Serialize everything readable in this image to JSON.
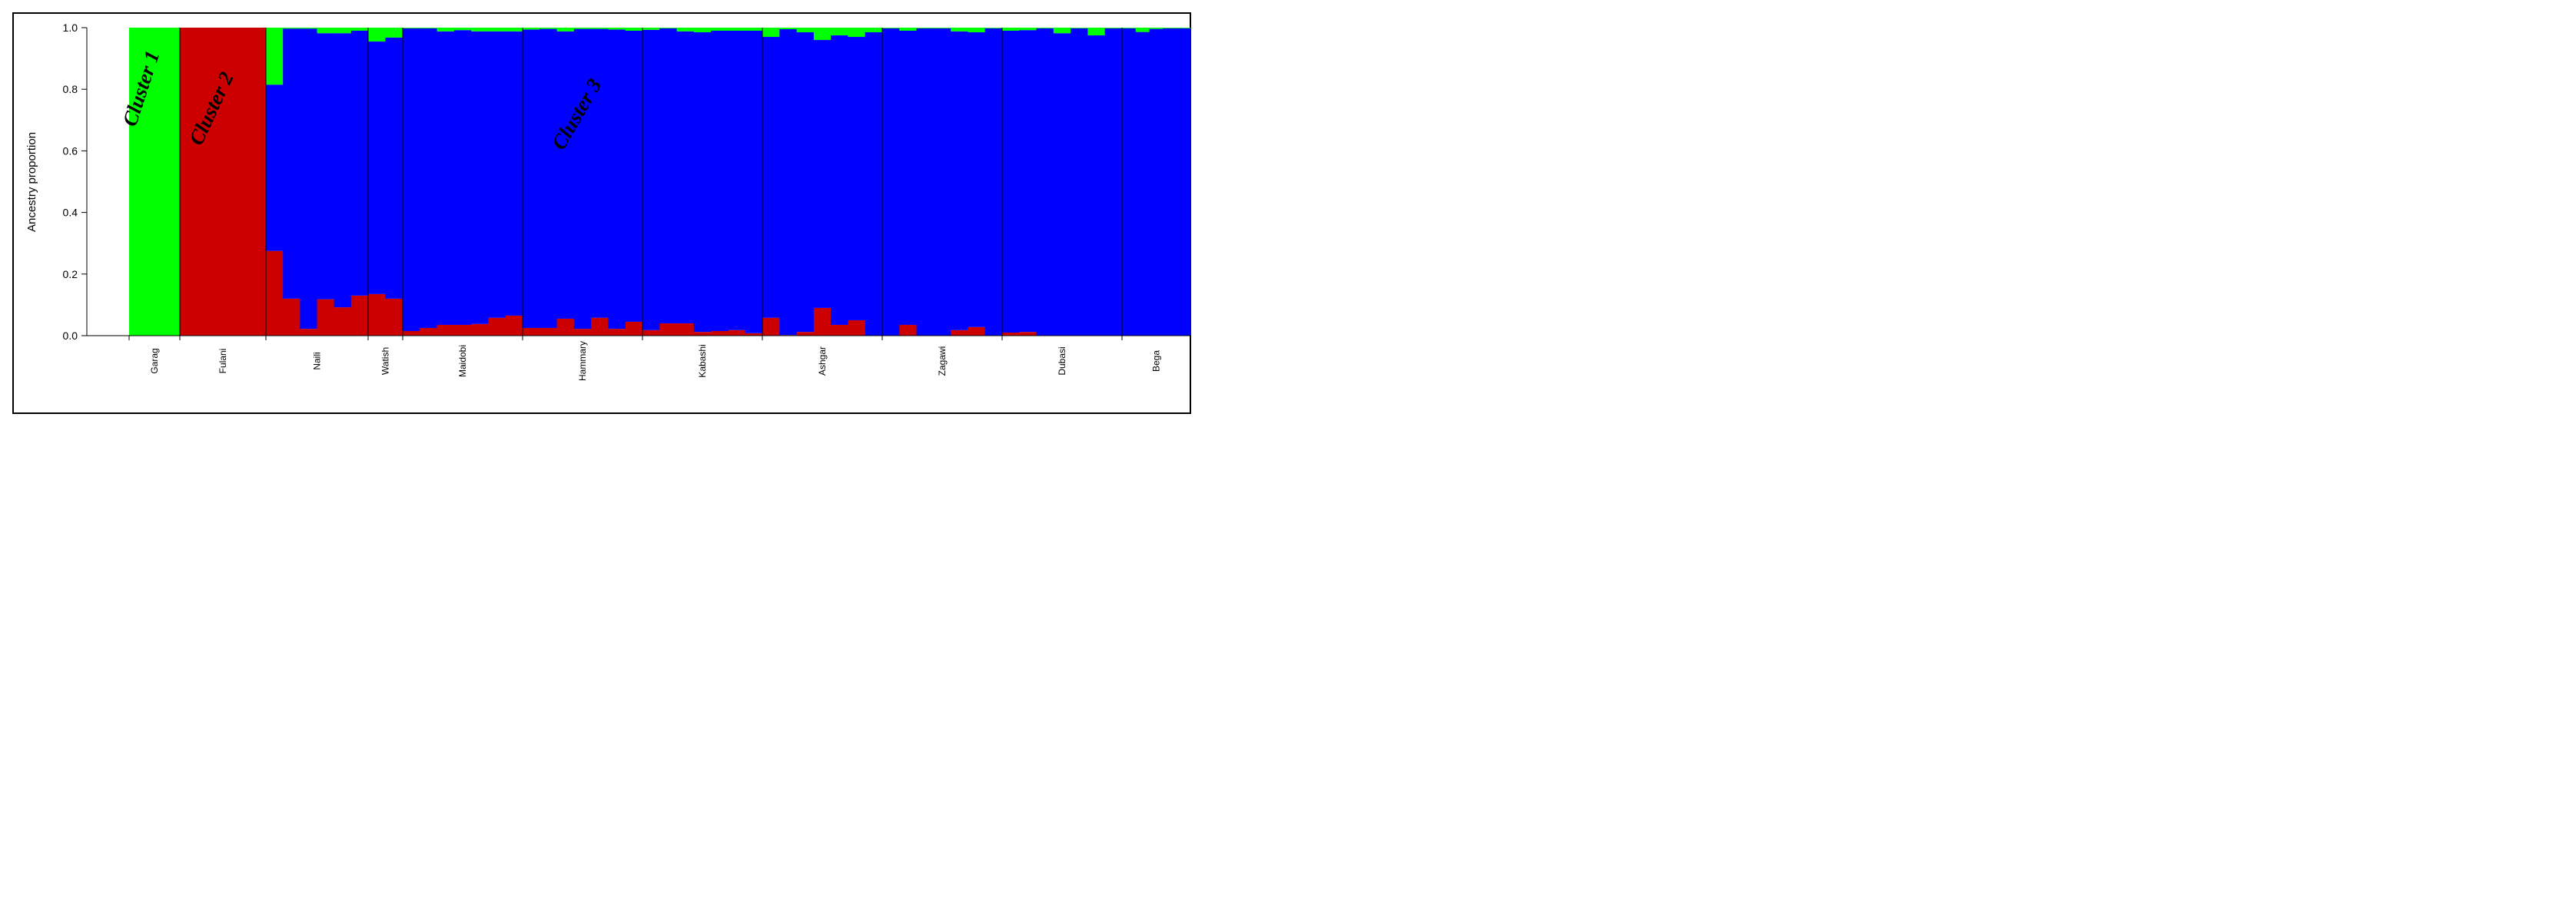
{
  "chart_data": {
    "type": "bar",
    "stacked": true,
    "title": "",
    "xlabel": "",
    "ylabel": "Ancestry proportion",
    "ylim": [
      0,
      1
    ],
    "yticks": [
      "0.0",
      "0.2",
      "0.4",
      "0.6",
      "0.8",
      "1.0"
    ],
    "colors": {
      "cluster1": "#00ff00",
      "cluster2": "#cc0000",
      "cluster3": "#0000ff"
    },
    "cluster_labels": [
      "Cluster 1",
      "Cluster 2",
      "Cluster 3"
    ],
    "populations": [
      {
        "name": "Garag",
        "individuals": [
          {
            "red": 0,
            "green": 1
          }
        ]
      },
      {
        "name": "Fulani",
        "individuals": [
          {
            "red": 1,
            "green": 0
          }
        ]
      },
      {
        "name": "Naili",
        "individuals": [
          {
            "red": 0.275,
            "green": 0.185
          },
          {
            "red": 0.12,
            "green": 0.003
          },
          {
            "red": 0.022,
            "green": 0.003
          },
          {
            "red": 0.118,
            "green": 0.018
          },
          {
            "red": 0.092,
            "green": 0.018
          },
          {
            "red": 0.13,
            "green": 0.01
          }
        ]
      },
      {
        "name": "Watish",
        "individuals": [
          {
            "red": 0.135,
            "green": 0.045
          },
          {
            "red": 0.12,
            "green": 0.032
          }
        ]
      },
      {
        "name": "Maidobi",
        "individuals": [
          {
            "red": 0.015,
            "green": 0.002
          },
          {
            "red": 0.025,
            "green": 0.002
          },
          {
            "red": 0.035,
            "green": 0.012
          },
          {
            "red": 0.035,
            "green": 0.008
          },
          {
            "red": 0.038,
            "green": 0.012
          },
          {
            "red": 0.058,
            "green": 0.012
          },
          {
            "red": 0.065,
            "green": 0.012
          }
        ]
      },
      {
        "name": "Hammary",
        "individuals": [
          {
            "red": 0.025,
            "green": 0.006
          },
          {
            "red": 0.025,
            "green": 0.004
          },
          {
            "red": 0.055,
            "green": 0.012
          },
          {
            "red": 0.022,
            "green": 0.004
          },
          {
            "red": 0.058,
            "green": 0.004
          },
          {
            "red": 0.022,
            "green": 0.006
          },
          {
            "red": 0.045,
            "green": 0.01
          }
        ]
      },
      {
        "name": "Kabashi",
        "individuals": [
          {
            "red": 0.018,
            "green": 0.007
          },
          {
            "red": 0.04,
            "green": 0.002
          },
          {
            "red": 0.04,
            "green": 0.012
          },
          {
            "red": 0.012,
            "green": 0.015
          },
          {
            "red": 0.015,
            "green": 0.01
          },
          {
            "red": 0.018,
            "green": 0.01
          },
          {
            "red": 0.008,
            "green": 0.01
          }
        ]
      },
      {
        "name": "Ashgar",
        "individuals": [
          {
            "red": 0.058,
            "green": 0.03
          },
          {
            "red": 0.002,
            "green": 0.005
          },
          {
            "red": 0.012,
            "green": 0.015
          },
          {
            "red": 0.09,
            "green": 0.04
          },
          {
            "red": 0.035,
            "green": 0.025
          },
          {
            "red": 0.05,
            "green": 0.03
          },
          {
            "red": 0.001,
            "green": 0.015
          }
        ]
      },
      {
        "name": "Zagawi",
        "individuals": [
          {
            "red": 0.001,
            "green": 0.002
          },
          {
            "red": 0.035,
            "green": 0.01
          },
          {
            "red": 0.001,
            "green": 0.002
          },
          {
            "red": 0.001,
            "green": 0.002
          },
          {
            "red": 0.018,
            "green": 0.012
          },
          {
            "red": 0.028,
            "green": 0.015
          },
          {
            "red": 0.001,
            "green": 0.002
          }
        ]
      },
      {
        "name": "Dubasi",
        "individuals": [
          {
            "red": 0.01,
            "green": 0.01
          },
          {
            "red": 0.012,
            "green": 0.008
          },
          {
            "red": 0.001,
            "green": 0.002
          },
          {
            "red": 0.001,
            "green": 0.018
          },
          {
            "red": 0.001,
            "green": 0.002
          },
          {
            "red": 0.001,
            "green": 0.025
          },
          {
            "red": 0.001,
            "green": 0.002
          }
        ]
      },
      {
        "name": "Bega",
        "individuals": [
          {
            "red": 0.001,
            "green": 0.002
          },
          {
            "red": 0.001,
            "green": 0.014
          },
          {
            "red": 0.001,
            "green": 0.004
          },
          {
            "red": 0.001,
            "green": 0.002
          },
          {
            "red": 0.001,
            "green": 0.002
          }
        ]
      }
    ]
  }
}
